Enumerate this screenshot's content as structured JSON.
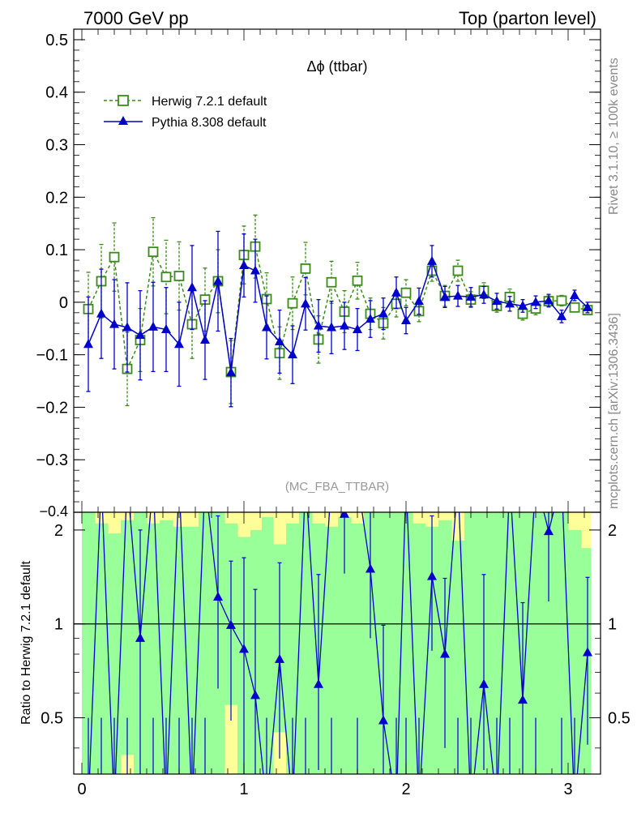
{
  "header": {
    "left": "7000 GeV pp",
    "right": "Top (parton level)"
  },
  "side_labels": {
    "rivet": "Rivet 3.1.10, ≥ 100k events",
    "mcplots": "mcplots.cern.ch [arXiv:1306.3436]"
  },
  "colors": {
    "herwig": "#3a8c1a",
    "pythia": "#0000cc",
    "band_green": "#99ff99",
    "band_yellow": "#ffff99"
  },
  "chart_data": [
    {
      "type": "line",
      "title": "Δϕ (ttbar)",
      "watermark": "(MC_FBA_TTBAR)",
      "xlim": [
        -0.05,
        3.2
      ],
      "ylim": [
        -0.4,
        0.52
      ],
      "yticks": [
        -0.3,
        -0.2,
        -0.1,
        0,
        0.1,
        0.2,
        0.3,
        0.4,
        0.5
      ],
      "ytick_labels": [
        "−0.3",
        "−0.2",
        "−0.1",
        "0",
        "0.1",
        "0.2",
        "0.3",
        "0.4",
        "0.5"
      ],
      "bottom_tick_label": "−0.4",
      "legend_position": "top-left",
      "series": [
        {
          "name": "Herwig 7.2.1 default",
          "marker": "open-square",
          "line": "dashed",
          "x": [
            0.04,
            0.12,
            0.2,
            0.28,
            0.36,
            0.44,
            0.52,
            0.6,
            0.68,
            0.76,
            0.84,
            0.92,
            1.0,
            1.07,
            1.14,
            1.22,
            1.3,
            1.38,
            1.46,
            1.54,
            1.62,
            1.7,
            1.78,
            1.86,
            1.94,
            2.0,
            2.08,
            2.16,
            2.24,
            2.32,
            2.4,
            2.48,
            2.56,
            2.64,
            2.72,
            2.8,
            2.88,
            2.96,
            3.04,
            3.12
          ],
          "y": [
            -0.013,
            0.04,
            0.086,
            -0.127,
            -0.072,
            0.096,
            0.048,
            0.05,
            -0.042,
            0.005,
            0.04,
            -0.133,
            0.09,
            0.106,
            0.006,
            -0.097,
            -0.002,
            0.064,
            -0.071,
            0.038,
            -0.018,
            0.041,
            -0.022,
            -0.04,
            -0.003,
            0.018,
            -0.017,
            0.06,
            0.012,
            0.06,
            0.005,
            0.022,
            -0.007,
            0.01,
            -0.022,
            -0.012,
            0.002,
            0.003,
            -0.01,
            -0.015
          ],
          "err": [
            0.07,
            0.07,
            0.065,
            0.07,
            0.06,
            0.065,
            0.07,
            0.065,
            0.065,
            0.06,
            0.06,
            0.06,
            0.055,
            0.06,
            0.05,
            0.05,
            0.05,
            0.05,
            0.045,
            0.04,
            0.04,
            0.035,
            0.03,
            0.03,
            0.025,
            0.025,
            0.02,
            0.02,
            0.02,
            0.02,
            0.015,
            0.015,
            0.012,
            0.015,
            0.012,
            0.012,
            0.01,
            0.01,
            0.008,
            0.008
          ]
        },
        {
          "name": "Pythia 8.308 default",
          "marker": "filled-triangle",
          "line": "solid",
          "x": [
            0.04,
            0.12,
            0.2,
            0.28,
            0.36,
            0.44,
            0.52,
            0.6,
            0.68,
            0.76,
            0.84,
            0.92,
            1.0,
            1.07,
            1.14,
            1.22,
            1.3,
            1.38,
            1.46,
            1.54,
            1.62,
            1.7,
            1.78,
            1.86,
            1.94,
            2.0,
            2.08,
            2.16,
            2.24,
            2.32,
            2.4,
            2.48,
            2.56,
            2.64,
            2.72,
            2.8,
            2.88,
            2.96,
            3.04,
            3.12
          ],
          "y": [
            -0.08,
            -0.022,
            -0.042,
            -0.048,
            -0.063,
            -0.047,
            -0.052,
            -0.08,
            0.028,
            -0.072,
            0.04,
            -0.134,
            0.07,
            0.06,
            -0.048,
            -0.075,
            -0.1,
            -0.003,
            -0.045,
            -0.048,
            -0.045,
            -0.052,
            -0.032,
            -0.022,
            0.018,
            -0.035,
            0.002,
            0.078,
            0.01,
            0.012,
            0.01,
            0.014,
            0.002,
            -0.003,
            -0.007,
            0.0,
            0.003,
            -0.027,
            0.013,
            -0.01
          ],
          "err": [
            0.09,
            0.085,
            0.085,
            0.085,
            0.085,
            0.085,
            0.08,
            0.08,
            0.08,
            0.075,
            0.095,
            0.065,
            0.06,
            0.06,
            0.06,
            0.06,
            0.055,
            0.05,
            0.05,
            0.05,
            0.045,
            0.04,
            0.035,
            0.03,
            0.03,
            0.025,
            0.025,
            0.03,
            0.02,
            0.02,
            0.018,
            0.016,
            0.015,
            0.014,
            0.012,
            0.012,
            0.012,
            0.012,
            0.01,
            0.01
          ]
        }
      ]
    },
    {
      "type": "line",
      "ylabel": "Ratio to Herwig 7.2.1 default",
      "xlim": [
        -0.05,
        3.2
      ],
      "ylim": [
        0.33,
        2.28
      ],
      "yticks": [
        0.5,
        1,
        2
      ],
      "ytick_labels": [
        "0.5",
        "1",
        "2"
      ],
      "xticks": [
        0,
        1,
        2,
        3
      ],
      "xtick_labels": [
        "0",
        "1",
        "2",
        "3"
      ],
      "reference_line": 1,
      "bands": {
        "x_low": [
          0.0,
          0.08,
          0.16,
          0.24,
          0.32,
          0.4,
          0.48,
          0.56,
          0.64,
          0.72,
          0.8,
          0.88,
          0.96,
          1.04,
          1.11,
          1.18,
          1.26,
          1.34,
          1.42,
          1.5,
          1.58,
          1.66,
          1.74,
          1.82,
          1.9,
          1.97,
          2.04,
          2.12,
          2.2,
          2.28,
          2.36,
          2.44,
          2.52,
          2.6,
          2.68,
          2.76,
          2.84,
          2.92,
          3.0,
          3.08
        ],
        "x_high": [
          0.08,
          0.16,
          0.24,
          0.32,
          0.4,
          0.48,
          0.56,
          0.64,
          0.72,
          0.8,
          0.88,
          0.96,
          1.04,
          1.11,
          1.18,
          1.26,
          1.34,
          1.42,
          1.5,
          1.58,
          1.66,
          1.74,
          1.82,
          1.9,
          1.97,
          2.04,
          2.12,
          2.2,
          2.28,
          2.36,
          2.44,
          2.52,
          2.6,
          2.68,
          2.76,
          2.84,
          2.92,
          3.0,
          3.08,
          3.14
        ],
        "green": [
          [
            0.33,
            2.28
          ],
          [
            0.33,
            2.1
          ],
          [
            0.33,
            1.95
          ],
          [
            0.38,
            2.15
          ],
          [
            0.33,
            2.28
          ],
          [
            0.33,
            2.1
          ],
          [
            0.33,
            2.15
          ],
          [
            0.33,
            2.05
          ],
          [
            0.33,
            2.05
          ],
          [
            0.33,
            2.28
          ],
          [
            0.33,
            2.28
          ],
          [
            0.55,
            2.1
          ],
          [
            0.33,
            1.9
          ],
          [
            0.33,
            2.0
          ],
          [
            0.33,
            2.2
          ],
          [
            0.45,
            1.8
          ],
          [
            0.33,
            2.1
          ],
          [
            0.33,
            2.28
          ],
          [
            0.33,
            2.1
          ],
          [
            0.33,
            2.05
          ],
          [
            0.33,
            2.2
          ],
          [
            0.33,
            2.1
          ],
          [
            0.33,
            2.28
          ],
          [
            0.33,
            2.28
          ],
          [
            0.33,
            2.28
          ],
          [
            0.33,
            2.28
          ],
          [
            0.33,
            2.1
          ],
          [
            0.33,
            2.05
          ],
          [
            0.33,
            2.15
          ],
          [
            0.33,
            1.85
          ],
          [
            0.33,
            2.28
          ],
          [
            0.33,
            2.28
          ],
          [
            0.33,
            2.28
          ],
          [
            0.33,
            2.28
          ],
          [
            0.33,
            2.28
          ],
          [
            0.33,
            2.28
          ],
          [
            0.33,
            2.28
          ],
          [
            0.33,
            2.28
          ],
          [
            0.33,
            2.0
          ],
          [
            0.33,
            1.75
          ]
        ],
        "yellow": [
          [
            0.33,
            2.28
          ],
          [
            0.33,
            2.28
          ],
          [
            0.33,
            2.28
          ],
          [
            0.33,
            2.28
          ],
          [
            0.33,
            2.28
          ],
          [
            0.33,
            2.28
          ],
          [
            0.33,
            2.28
          ],
          [
            0.33,
            2.28
          ],
          [
            0.33,
            2.28
          ],
          [
            0.33,
            2.28
          ],
          [
            0.33,
            2.28
          ],
          [
            0.33,
            2.28
          ],
          [
            0.33,
            2.28
          ],
          [
            0.33,
            2.28
          ],
          [
            0.33,
            2.28
          ],
          [
            0.33,
            2.28
          ],
          [
            0.33,
            2.28
          ],
          [
            0.33,
            2.28
          ],
          [
            0.33,
            2.28
          ],
          [
            0.33,
            2.28
          ],
          [
            0.33,
            2.28
          ],
          [
            0.33,
            2.28
          ],
          [
            0.33,
            2.28
          ],
          [
            0.33,
            2.28
          ],
          [
            0.33,
            2.28
          ],
          [
            0.33,
            2.28
          ],
          [
            0.33,
            2.28
          ],
          [
            0.33,
            2.28
          ],
          [
            0.33,
            2.28
          ],
          [
            0.33,
            2.28
          ],
          [
            0.33,
            2.28
          ],
          [
            0.33,
            2.28
          ],
          [
            0.33,
            2.28
          ],
          [
            0.33,
            2.28
          ],
          [
            0.33,
            2.28
          ],
          [
            0.33,
            2.28
          ],
          [
            0.33,
            2.28
          ],
          [
            0.33,
            2.28
          ],
          [
            0.33,
            2.28
          ],
          [
            0.33,
            2.28
          ]
        ]
      },
      "series": [
        {
          "name": "Pythia 8.308 default",
          "x": [
            0.04,
            0.12,
            0.2,
            0.28,
            0.36,
            0.44,
            0.52,
            0.6,
            0.68,
            0.76,
            0.84,
            0.92,
            1.0,
            1.07,
            1.14,
            1.22,
            1.3,
            1.38,
            1.46,
            1.54,
            1.62,
            1.7,
            1.78,
            1.86,
            1.94,
            2.0,
            2.08,
            2.16,
            2.24,
            2.32,
            2.4,
            2.48,
            2.56,
            2.64,
            2.72,
            2.8,
            2.88,
            2.96,
            3.04,
            3.12
          ],
          "y": [
            null,
            null,
            null,
            null,
            0.9,
            null,
            null,
            null,
            null,
            null,
            1.22,
            0.99,
            0.83,
            0.59,
            null,
            0.77,
            null,
            null,
            0.64,
            null,
            2.25,
            null,
            1.5,
            0.49,
            null,
            null,
            null,
            1.42,
            0.8,
            null,
            null,
            0.64,
            null,
            null,
            0.57,
            null,
            1.98,
            null,
            null,
            0.81
          ],
          "err_low": [
            null,
            null,
            null,
            null,
            0.6,
            null,
            null,
            null,
            null,
            null,
            0.6,
            0.5,
            0.5,
            0.3,
            null,
            0.4,
            null,
            null,
            0.3,
            null,
            0.8,
            null,
            0.6,
            0.2,
            null,
            null,
            null,
            0.6,
            0.4,
            null,
            null,
            0.3,
            null,
            null,
            0.3,
            null,
            0.8,
            null,
            null,
            0.4
          ],
          "err_high": [
            null,
            null,
            null,
            null,
            1.1,
            null,
            null,
            null,
            null,
            null,
            1.0,
            0.6,
            0.8,
            0.7,
            null,
            0.8,
            null,
            null,
            0.8,
            null,
            0.05,
            null,
            0.8,
            0.5,
            null,
            null,
            null,
            0.8,
            0.6,
            null,
            null,
            0.8,
            null,
            null,
            0.6,
            null,
            0.3,
            null,
            null,
            0.6
          ]
        }
      ]
    }
  ]
}
